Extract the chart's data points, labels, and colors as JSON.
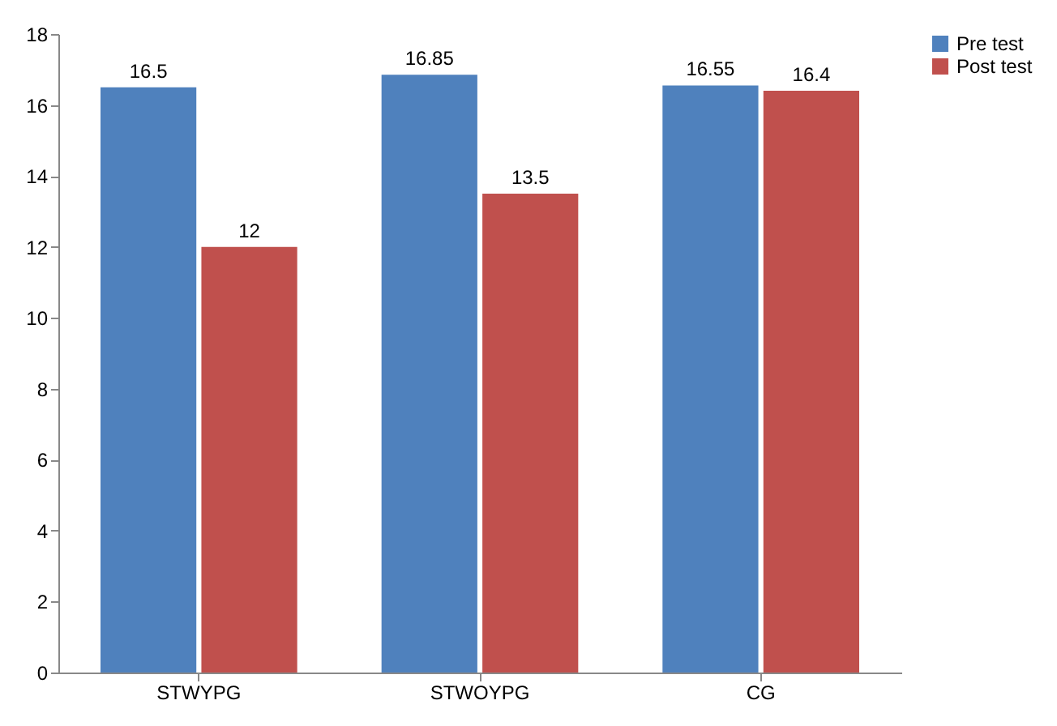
{
  "chart_data": {
    "type": "bar",
    "categories": [
      "STWYPG",
      "STWOYPG",
      "CG"
    ],
    "series": [
      {
        "name": "Pre test",
        "color": "#4f81bd",
        "values": [
          16.5,
          16.85,
          16.55
        ]
      },
      {
        "name": "Post test",
        "color": "#c0504d",
        "values": [
          12,
          13.5,
          16.4
        ]
      }
    ],
    "ylim": [
      0,
      18
    ],
    "yticks": [
      0,
      2,
      4,
      6,
      8,
      10,
      12,
      14,
      16,
      18
    ],
    "data_labels": true,
    "grid": false,
    "legend": "right"
  }
}
